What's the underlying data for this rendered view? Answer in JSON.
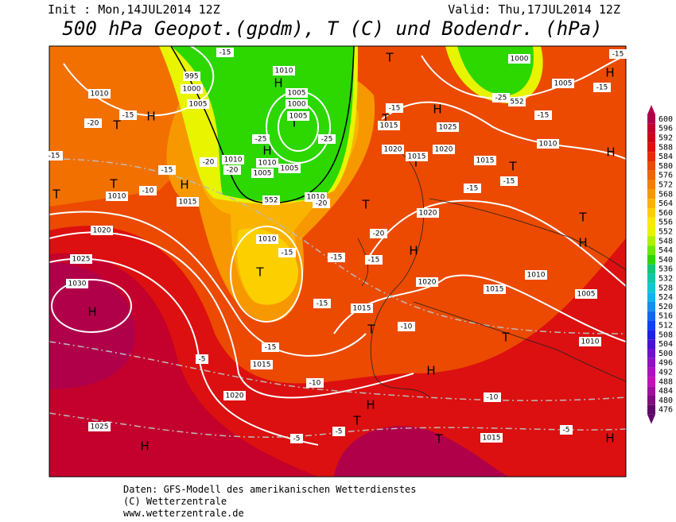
{
  "header": {
    "init": "Init : Mon,14JUL2014 12Z",
    "valid": "Valid: Thu,17JUL2014 12Z",
    "title": "500 hPa Geopot.(gpdm), T (C) und Bodendr. (hPa)"
  },
  "legend": {
    "values": [
      600,
      596,
      592,
      588,
      584,
      580,
      576,
      572,
      568,
      564,
      560,
      556,
      552,
      548,
      544,
      540,
      536,
      532,
      528,
      524,
      520,
      516,
      512,
      508,
      504,
      500,
      496,
      492,
      488,
      484,
      480,
      476
    ],
    "colors": [
      "#b0004a",
      "#c4002c",
      "#d00018",
      "#dc1010",
      "#e42c08",
      "#ec4a00",
      "#f26400",
      "#f67e00",
      "#f89800",
      "#fab400",
      "#fcd000",
      "#fce800",
      "#e8f400",
      "#b0f000",
      "#6ee800",
      "#2cd800",
      "#10c878",
      "#10c8a8",
      "#10c8d0",
      "#10b4f0",
      "#1090f0",
      "#1068f0",
      "#1040f0",
      "#2020e0",
      "#4810d8",
      "#7010d0",
      "#9010c8",
      "#b010c0",
      "#c810b8",
      "#a0109c",
      "#800c80",
      "#600868"
    ]
  },
  "map_labels": [
    "H",
    "H",
    "H",
    "H",
    "H",
    "H",
    "H",
    "H",
    "H",
    "H",
    "H",
    "H",
    "H",
    "H",
    "T",
    "T",
    "T",
    "T",
    "T",
    "T",
    "T",
    "T",
    "T",
    "T",
    "T",
    "T",
    "T",
    "T",
    "T",
    "1010",
    "1010",
    "1020",
    "1025",
    "1030",
    "1015",
    "1010",
    "1015",
    "1020",
    "1025",
    "1015",
    "1020",
    "1015",
    "1010",
    "1005",
    "1010",
    "1015",
    "1020",
    "1025",
    "1015",
    "1010",
    "1005",
    "1000",
    "1015",
    "1020",
    "1015",
    "1020",
    "995",
    "1000",
    "1005",
    "1010",
    "1005",
    "1000",
    "1005",
    "1010",
    "1010",
    "1005",
    "1005",
    "1010",
    "-15",
    "-15",
    "-15",
    "-20",
    "-15",
    "-10",
    "-20",
    "-20",
    "-15",
    "-15",
    "-15",
    "-20",
    "-15",
    "-15",
    "-10",
    "-5",
    "-10",
    "-5",
    "-5",
    "-10",
    "-5",
    "-15",
    "-15",
    "-15",
    "-15",
    "-25",
    "-15",
    "-15",
    "-25",
    "-25",
    "-20",
    "552",
    "552"
  ],
  "footer": [
    "Daten: GFS-Modell des amerikanischen Wetterdienstes",
    "(C) Wetterzentrale",
    "www.wetterzentrale.de"
  ]
}
